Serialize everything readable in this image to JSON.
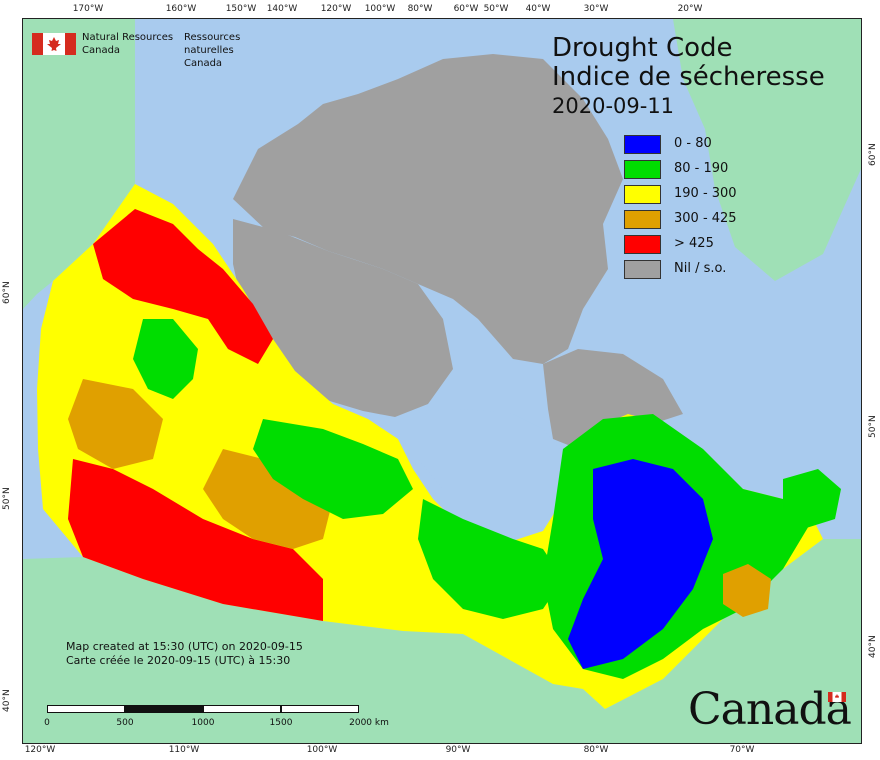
{
  "map": {
    "title_en": "Drought Code",
    "title_fr": "Indice de sécheresse",
    "date": "2020-09-11",
    "legend": [
      {
        "label": "0 - 80",
        "color": "#0000ff"
      },
      {
        "label": "80 - 190",
        "color": "#00dd00"
      },
      {
        "label": "190 - 300",
        "color": "#ffff00"
      },
      {
        "label": "300 - 425",
        "color": "#e0a000"
      },
      {
        "label": "> 425",
        "color": "#ff0000"
      },
      {
        "label": "Nil / s.o.",
        "color": "#a0a0a0"
      }
    ],
    "colors": {
      "water": "#a9cbee",
      "land_outside": "#9fe0b6",
      "nil": "#a0a0a0"
    },
    "agency": {
      "en_line1": "Natural Resources",
      "en_line2": "Canada",
      "fr_line1": "Ressources naturelles",
      "fr_line2": "Canada"
    },
    "credits": {
      "line_en": "Map created at 15:30 (UTC) on 2020-09-15",
      "line_fr": "Carte créée le 2020-09-15 (UTC) à 15:30"
    },
    "scale": {
      "ticks": [
        "0",
        "500",
        "1000",
        "1500",
        "2000 km"
      ]
    },
    "wordmark": "Canada",
    "graticule": {
      "top": [
        "170°W",
        "160°W",
        "150°W",
        "140°W",
        "120°W",
        "100°W",
        "80°W",
        "60°W",
        "50°W",
        "40°W",
        "30°W",
        "20°W"
      ],
      "bottom": [
        "120°W",
        "110°W",
        "100°W",
        "90°W",
        "80°W",
        "70°W"
      ],
      "left": [
        "60°N",
        "50°N",
        "40°N"
      ],
      "right": [
        "60°N",
        "50°N",
        "40°N"
      ]
    }
  }
}
